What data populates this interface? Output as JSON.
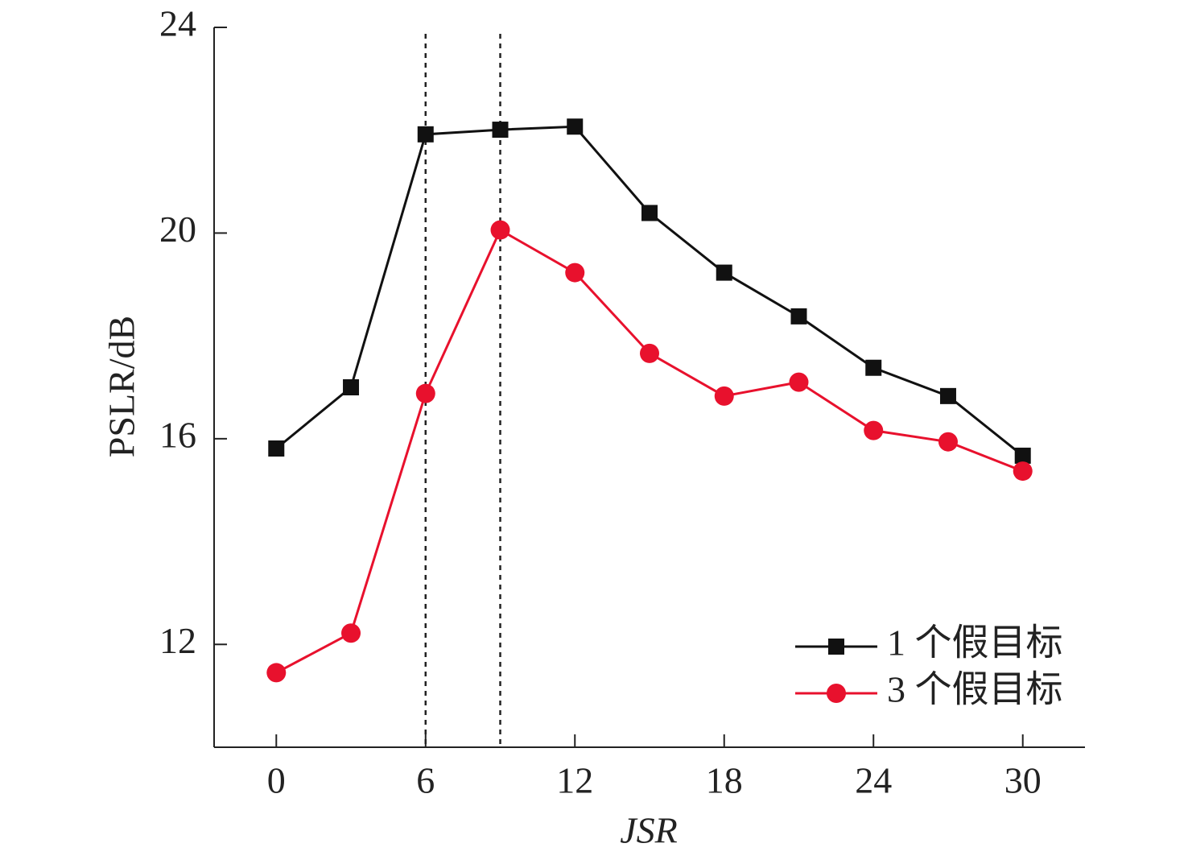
{
  "chart_data": {
    "type": "line",
    "x_label": "JSR",
    "y_label": "PSLR/dB",
    "x": [
      0,
      3,
      6,
      9,
      12,
      15,
      18,
      21,
      24,
      27,
      30
    ],
    "series": [
      {
        "name": "1 个假目标",
        "color": "#111111",
        "marker": "square",
        "values": [
          15.81,
          17.0,
          21.92,
          22.01,
          22.07,
          20.39,
          19.23,
          18.38,
          17.38,
          16.83,
          15.67
        ]
      },
      {
        "name": "3 个假目标",
        "color": "#e8112d",
        "marker": "circle",
        "values": [
          11.45,
          12.22,
          16.88,
          20.06,
          19.23,
          17.66,
          16.83,
          17.1,
          16.16,
          15.94,
          15.37
        ]
      }
    ],
    "reference_lines_x": [
      6,
      9
    ],
    "xlim": [
      -2.5,
      32.5
    ],
    "ylim": [
      10,
      24
    ],
    "xticks": [
      0,
      6,
      12,
      18,
      24,
      30
    ],
    "yticks": [
      12,
      16,
      20,
      24
    ],
    "grid": false,
    "legend": "lower right"
  }
}
